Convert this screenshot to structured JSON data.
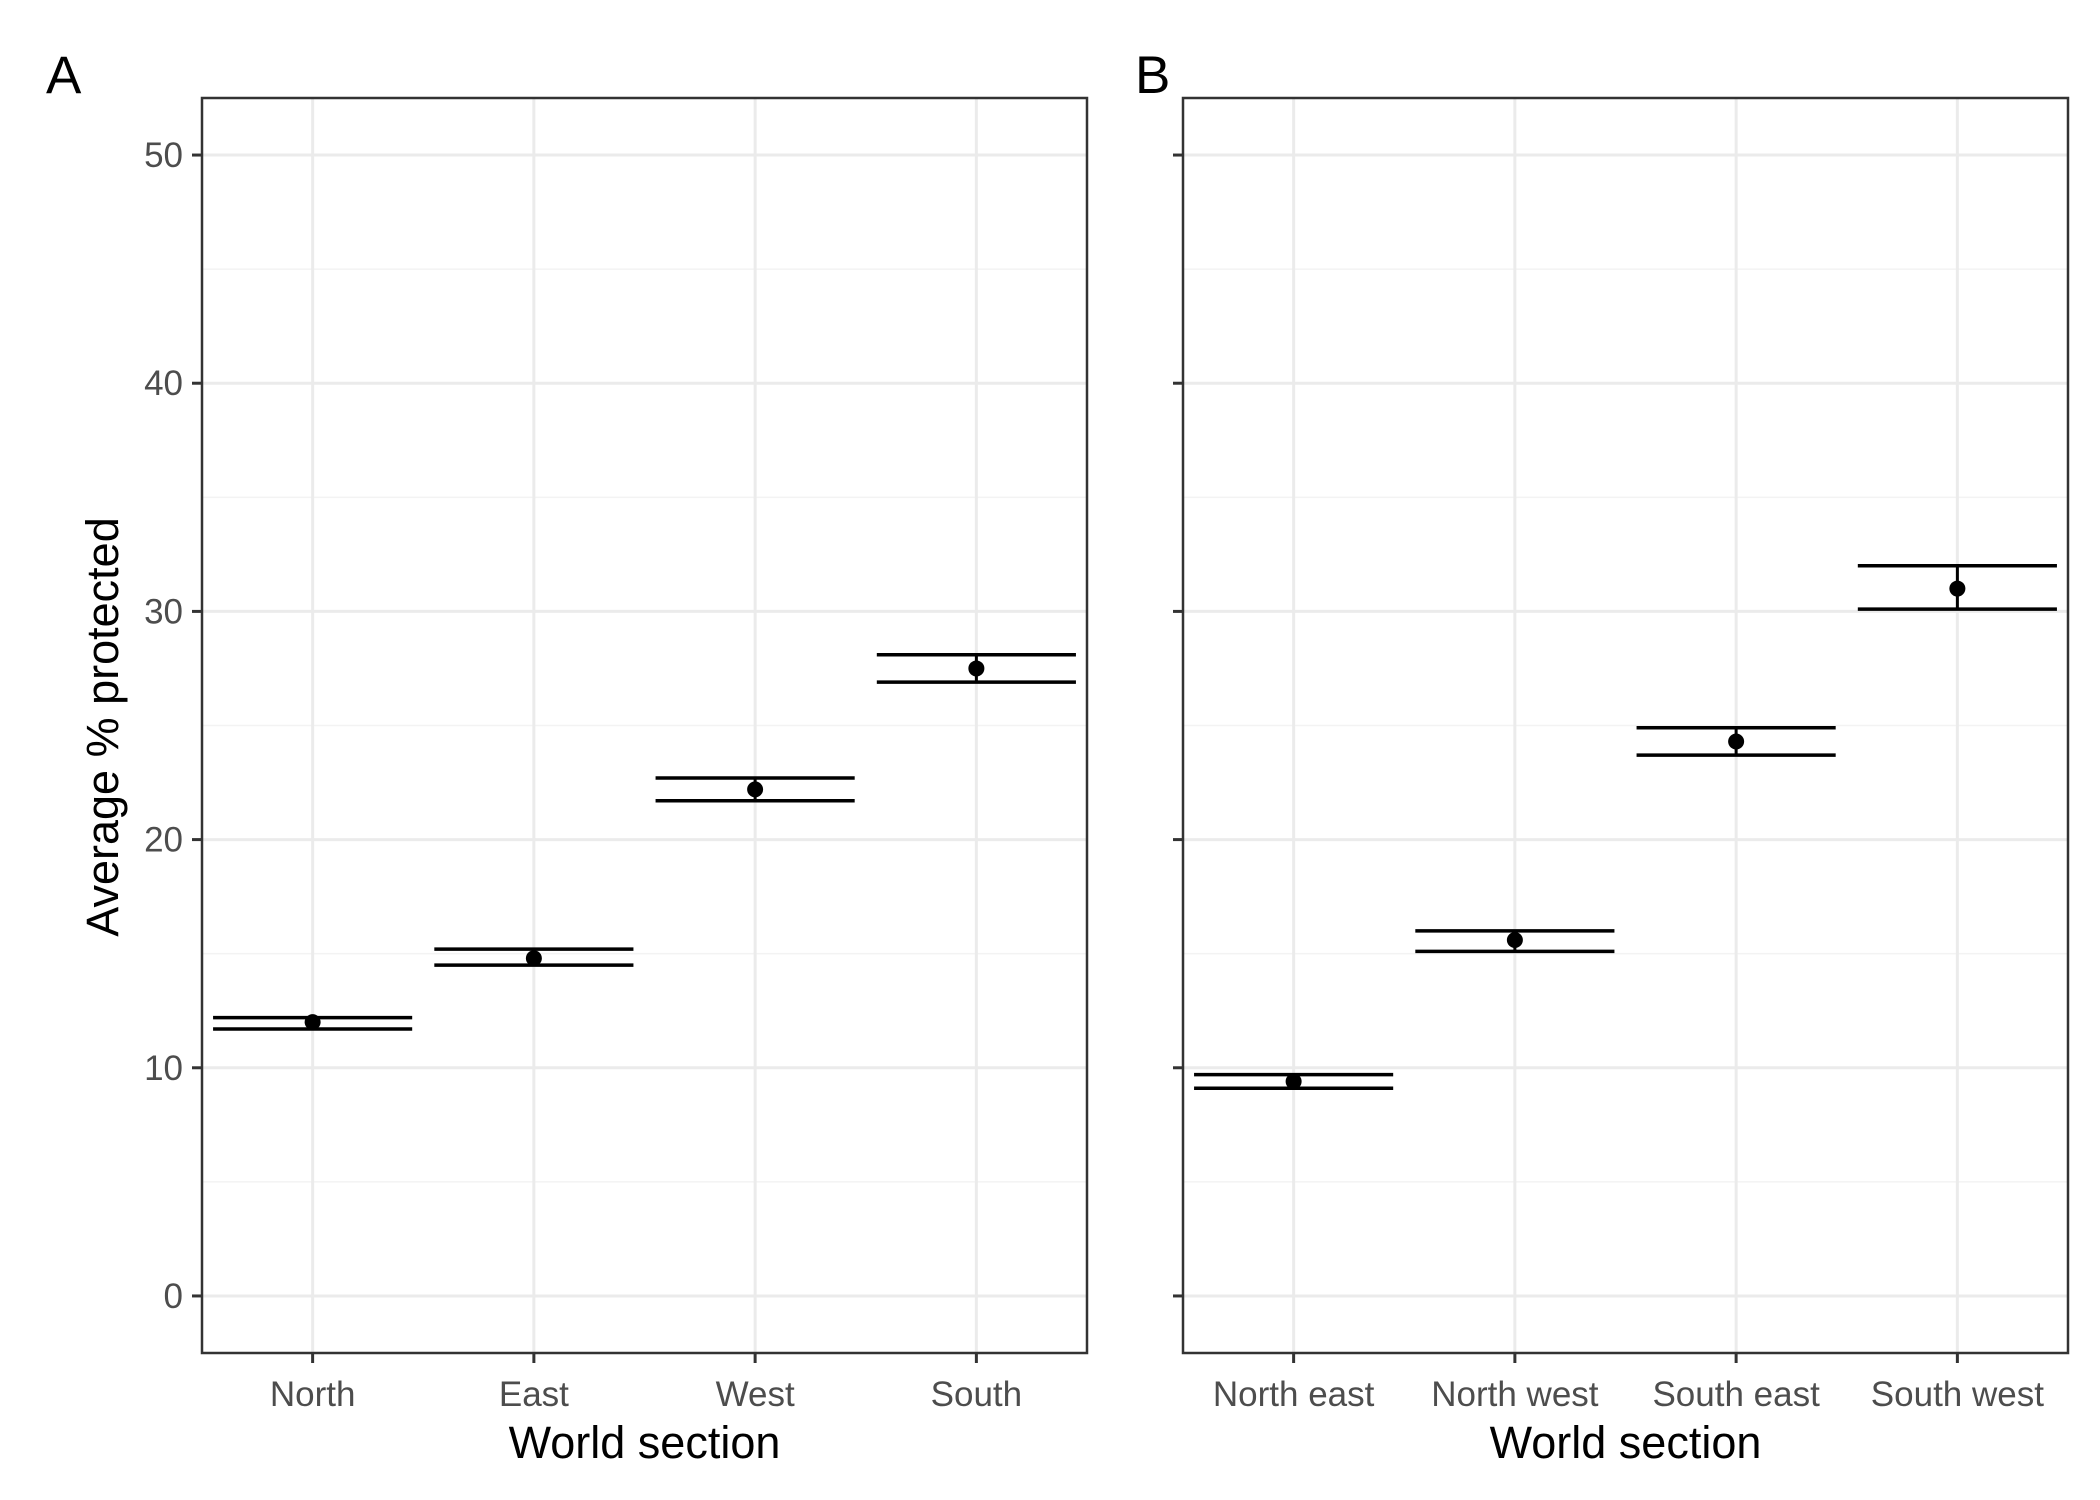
{
  "figure": {
    "ylabel": "Average % protected"
  },
  "colors": {
    "grid_major": "#ebebeb",
    "grid_minor": "#f3f3f3",
    "frame": "#333333",
    "marks": "#000000",
    "tick_text": "#4d4d4d",
    "background": "#ffffff"
  },
  "chart_data": [
    {
      "type": "scatter",
      "panel_label": "A",
      "title": "",
      "xlabel": "World section",
      "ylabel": "Average % protected",
      "ylim": [
        -2.5,
        52.5
      ],
      "yticks": [
        0,
        10,
        20,
        30,
        40,
        50
      ],
      "grid": true,
      "legend": "none",
      "categories": [
        "North",
        "East",
        "West",
        "South"
      ],
      "series": [
        {
          "values": [
            12.0,
            14.8,
            22.2,
            27.5
          ],
          "lower": [
            11.7,
            14.5,
            21.7,
            26.9
          ],
          "upper": [
            12.2,
            15.2,
            22.7,
            28.1
          ]
        }
      ]
    },
    {
      "type": "scatter",
      "panel_label": "B",
      "title": "",
      "xlabel": "World section",
      "ylabel": "",
      "ylim": [
        -2.5,
        52.5
      ],
      "yticks": [
        0,
        10,
        20,
        30,
        40,
        50
      ],
      "grid": true,
      "legend": "none",
      "categories": [
        "North east",
        "North west",
        "South east",
        "South west"
      ],
      "series": [
        {
          "values": [
            9.4,
            15.6,
            24.3,
            31.0
          ],
          "lower": [
            9.1,
            15.1,
            23.7,
            30.1
          ],
          "upper": [
            9.7,
            16.0,
            24.9,
            32.0
          ]
        }
      ]
    }
  ]
}
